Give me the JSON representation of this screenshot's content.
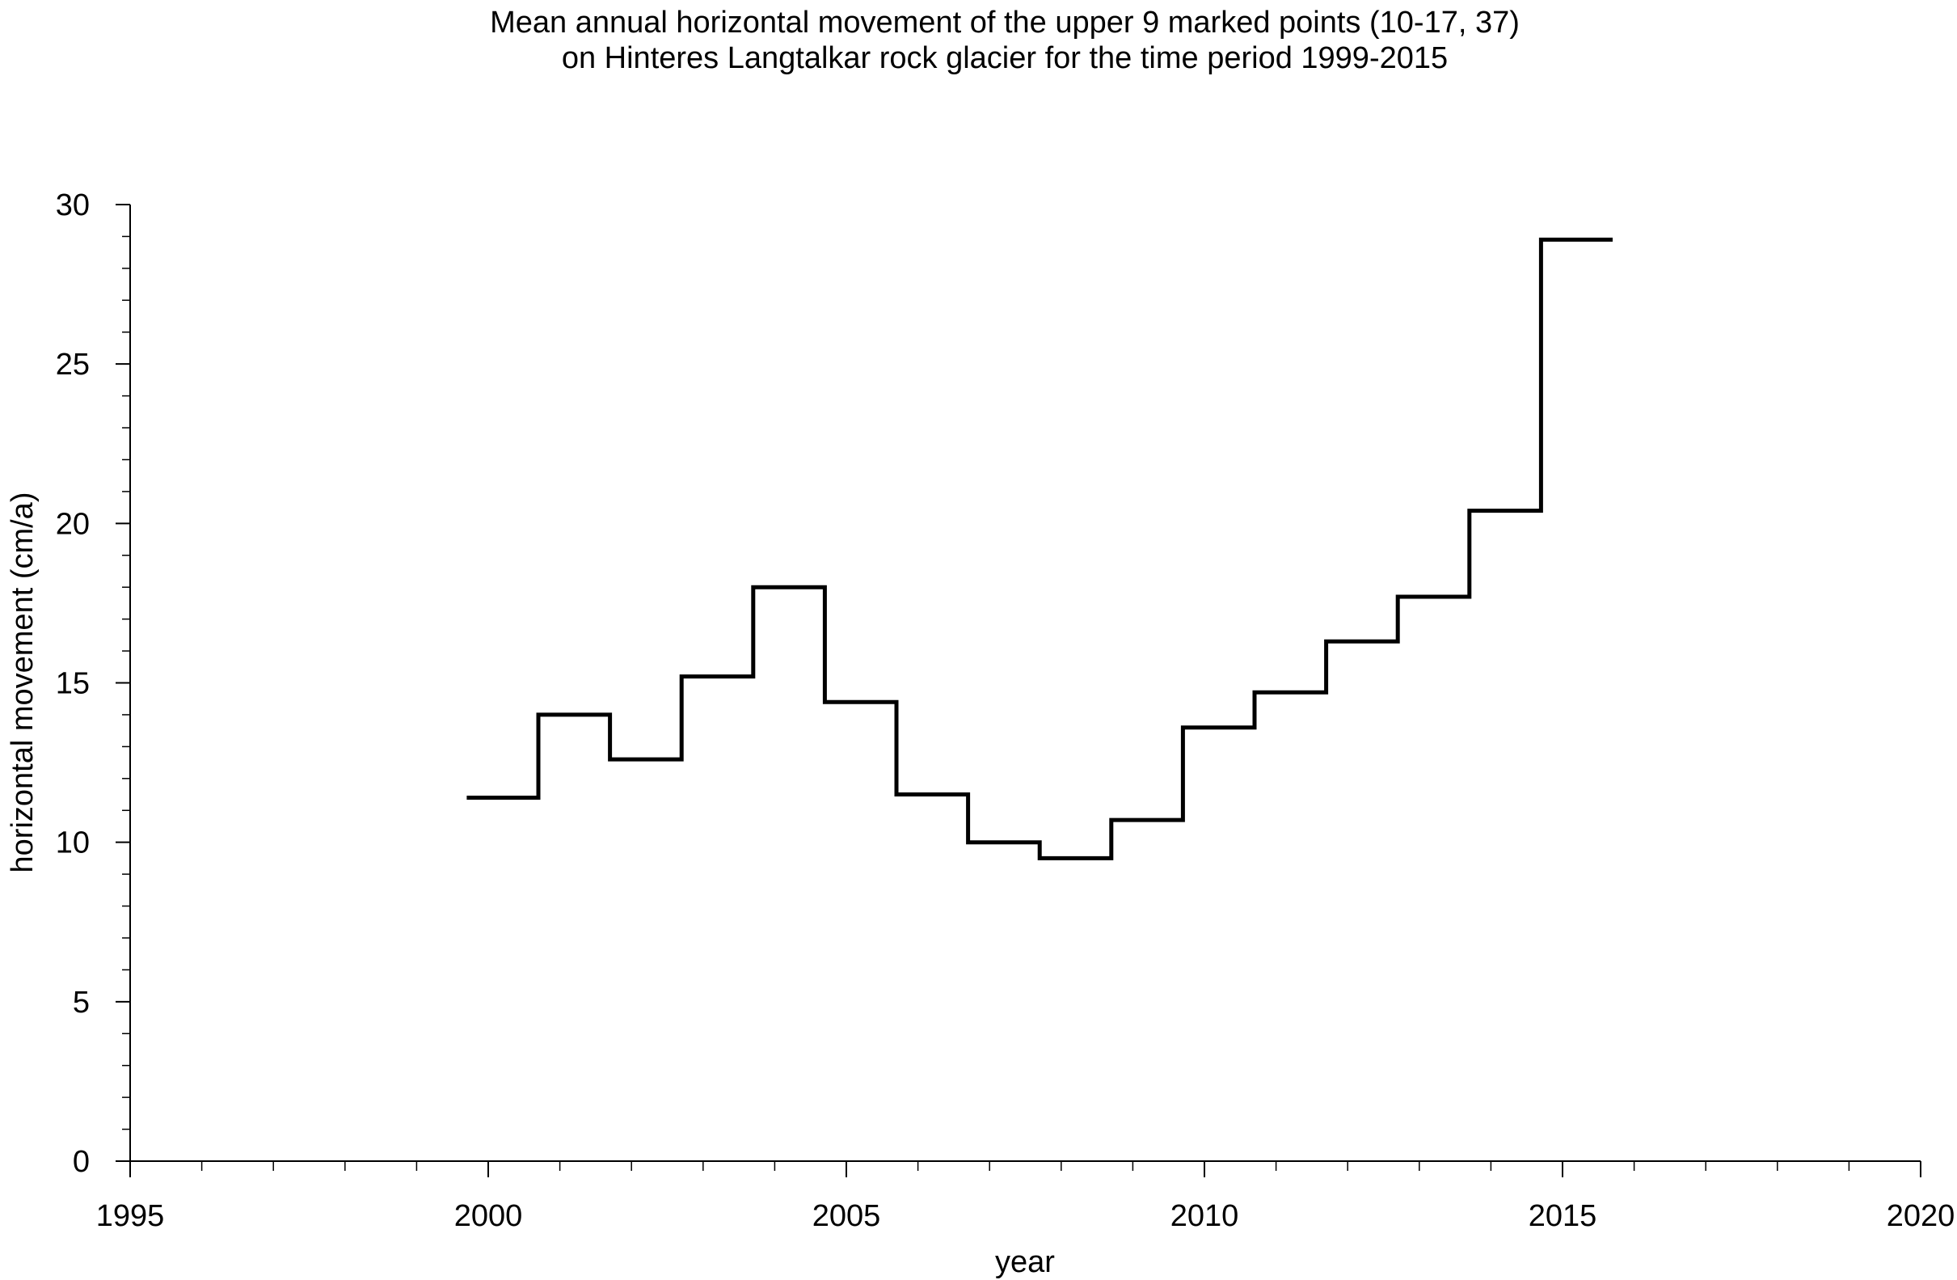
{
  "chart_data": {
    "type": "line",
    "line_style": "step",
    "title": "Mean annual horizontal movement of the upper 9 marked points (10-17, 37)",
    "subtitle": "on Hinteres Langtalkar rock glacier for the time period 1999-2015",
    "xlabel": "year",
    "ylabel": "horizontal movement (cm/a)",
    "xlim": [
      1995,
      2020
    ],
    "ylim": [
      0,
      30
    ],
    "x_ticks": [
      1995,
      2000,
      2005,
      2010,
      2015,
      2020
    ],
    "y_ticks": [
      0,
      5,
      10,
      15,
      20,
      25,
      30
    ],
    "grid": false,
    "legend": "none",
    "series_color": "#000000",
    "periods": [
      {
        "start": 1999.7,
        "end": 2000.7,
        "value": 11.4
      },
      {
        "start": 2000.7,
        "end": 2001.7,
        "value": 14.0
      },
      {
        "start": 2001.7,
        "end": 2002.7,
        "value": 12.6
      },
      {
        "start": 2002.7,
        "end": 2003.7,
        "value": 15.2
      },
      {
        "start": 2003.7,
        "end": 2004.7,
        "value": 18.0
      },
      {
        "start": 2004.7,
        "end": 2005.7,
        "value": 14.4
      },
      {
        "start": 2005.7,
        "end": 2006.7,
        "value": 11.5
      },
      {
        "start": 2006.7,
        "end": 2007.7,
        "value": 10.0
      },
      {
        "start": 2007.7,
        "end": 2008.7,
        "value": 9.5
      },
      {
        "start": 2008.7,
        "end": 2009.7,
        "value": 10.7
      },
      {
        "start": 2009.7,
        "end": 2010.7,
        "value": 13.6
      },
      {
        "start": 2010.7,
        "end": 2011.7,
        "value": 14.7
      },
      {
        "start": 2011.7,
        "end": 2012.7,
        "value": 16.3
      },
      {
        "start": 2012.7,
        "end": 2013.7,
        "value": 17.7
      },
      {
        "start": 2013.7,
        "end": 2014.7,
        "value": 20.4
      },
      {
        "start": 2014.7,
        "end": 2015.7,
        "value": 28.9
      }
    ]
  }
}
